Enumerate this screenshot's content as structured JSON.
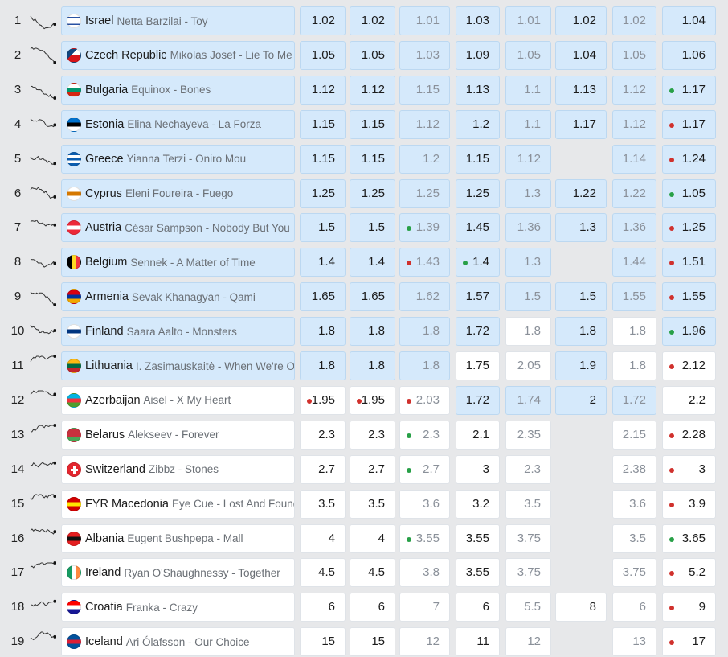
{
  "rows": [
    {
      "rank": "1",
      "country": "Israel",
      "song": "Netta Barzilai - Toy",
      "fav": true,
      "flag": {
        "bg": "#ffffff",
        "band": "#2952a3",
        "dir": "star"
      },
      "odds": [
        {
          "v": "1.02",
          "f": 1
        },
        {
          "v": "1.02",
          "f": 1
        },
        {
          "v": "1.01",
          "f": 1,
          "d": 1
        },
        {
          "v": "1.03",
          "f": 1
        },
        {
          "v": "1.01",
          "f": 1,
          "d": 1
        },
        {
          "v": "1.02",
          "f": 1
        },
        {
          "v": "1.02",
          "f": 1,
          "d": 1
        },
        {
          "v": "1.04",
          "f": 1
        }
      ]
    },
    {
      "rank": "2",
      "country": "Czech Republic",
      "song": "Mikolas Josef - Lie To Me",
      "fav": true,
      "flag": {
        "bg": "#ffffff",
        "band": "#d7141a",
        "dir": "czech"
      },
      "odds": [
        {
          "v": "1.05",
          "f": 1
        },
        {
          "v": "1.05",
          "f": 1
        },
        {
          "v": "1.03",
          "f": 1,
          "d": 1
        },
        {
          "v": "1.09",
          "f": 1
        },
        {
          "v": "1.05",
          "f": 1,
          "d": 1
        },
        {
          "v": "1.04",
          "f": 1
        },
        {
          "v": "1.05",
          "f": 1,
          "d": 1
        },
        {
          "v": "1.06",
          "f": 1
        }
      ]
    },
    {
      "rank": "3",
      "country": "Bulgaria",
      "song": "Equinox - Bones",
      "fav": true,
      "flag": {
        "colors": [
          "#ffffff",
          "#00966e",
          "#d62612"
        ]
      },
      "odds": [
        {
          "v": "1.12",
          "f": 1
        },
        {
          "v": "1.12",
          "f": 1
        },
        {
          "v": "1.15",
          "f": 1,
          "d": 1
        },
        {
          "v": "1.13",
          "f": 1
        },
        {
          "v": "1.1",
          "f": 1,
          "d": 1
        },
        {
          "v": "1.13",
          "f": 1
        },
        {
          "v": "1.12",
          "f": 1,
          "d": 1
        },
        {
          "v": "1.17",
          "f": 1,
          "dot": "green"
        }
      ]
    },
    {
      "rank": "4",
      "country": "Estonia",
      "song": "Elina Nechayeva - La Forza",
      "fav": true,
      "flag": {
        "colors": [
          "#0072ce",
          "#000000",
          "#ffffff"
        ]
      },
      "odds": [
        {
          "v": "1.15",
          "f": 1
        },
        {
          "v": "1.15",
          "f": 1
        },
        {
          "v": "1.12",
          "f": 1,
          "d": 1
        },
        {
          "v": "1.2",
          "f": 1
        },
        {
          "v": "1.1",
          "f": 1,
          "d": 1
        },
        {
          "v": "1.17",
          "f": 1
        },
        {
          "v": "1.12",
          "f": 1,
          "d": 1
        },
        {
          "v": "1.17",
          "f": 1,
          "dot": "red"
        }
      ]
    },
    {
      "rank": "5",
      "country": "Greece",
      "song": "Yianna Terzi - Oniro Mou",
      "fav": true,
      "flag": {
        "colors": [
          "#0d5eaf",
          "#ffffff",
          "#0d5eaf",
          "#ffffff",
          "#0d5eaf"
        ]
      },
      "odds": [
        {
          "v": "1.15",
          "f": 1
        },
        {
          "v": "1.15",
          "f": 1
        },
        {
          "v": "1.2",
          "f": 1,
          "d": 1
        },
        {
          "v": "1.15",
          "f": 1
        },
        {
          "v": "1.12",
          "f": 1,
          "d": 1
        },
        {
          "v": "",
          "e": 1
        },
        {
          "v": "1.14",
          "f": 1,
          "d": 1
        },
        {
          "v": "1.24",
          "f": 1,
          "dot": "red"
        }
      ]
    },
    {
      "rank": "6",
      "country": "Cyprus",
      "song": "Eleni Foureira - Fuego",
      "fav": true,
      "flag": {
        "colors": [
          "#ffffff",
          "#d57800",
          "#ffffff"
        ]
      },
      "odds": [
        {
          "v": "1.25",
          "f": 1
        },
        {
          "v": "1.25",
          "f": 1
        },
        {
          "v": "1.25",
          "f": 1,
          "d": 1
        },
        {
          "v": "1.25",
          "f": 1
        },
        {
          "v": "1.3",
          "f": 1,
          "d": 1
        },
        {
          "v": "1.22",
          "f": 1
        },
        {
          "v": "1.22",
          "f": 1,
          "d": 1
        },
        {
          "v": "1.05",
          "f": 1,
          "dot": "green"
        }
      ]
    },
    {
      "rank": "7",
      "country": "Austria",
      "song": "César Sampson - Nobody But You",
      "fav": true,
      "flag": {
        "colors": [
          "#ed2939",
          "#ffffff",
          "#ed2939"
        ]
      },
      "odds": [
        {
          "v": "1.5",
          "f": 1
        },
        {
          "v": "1.5",
          "f": 1
        },
        {
          "v": "1.39",
          "f": 1,
          "d": 1,
          "dot": "green"
        },
        {
          "v": "1.45",
          "f": 1
        },
        {
          "v": "1.36",
          "f": 1,
          "d": 1
        },
        {
          "v": "1.3",
          "f": 1
        },
        {
          "v": "1.36",
          "f": 1,
          "d": 1
        },
        {
          "v": "1.25",
          "f": 1,
          "dot": "red"
        }
      ]
    },
    {
      "rank": "8",
      "country": "Belgium",
      "song": "Sennek - A Matter of Time",
      "fav": true,
      "flag": {
        "vertical": [
          "#000000",
          "#fdda24",
          "#ef3340"
        ]
      },
      "odds": [
        {
          "v": "1.4",
          "f": 1
        },
        {
          "v": "1.4",
          "f": 1
        },
        {
          "v": "1.43",
          "f": 1,
          "d": 1,
          "dot": "red"
        },
        {
          "v": "1.4",
          "f": 1,
          "dot": "green"
        },
        {
          "v": "1.3",
          "f": 1,
          "d": 1
        },
        {
          "v": "",
          "e": 1
        },
        {
          "v": "1.44",
          "f": 1,
          "d": 1
        },
        {
          "v": "1.51",
          "f": 1,
          "dot": "red"
        }
      ]
    },
    {
      "rank": "9",
      "country": "Armenia",
      "song": "Sevak Khanagyan - Qami",
      "fav": true,
      "flag": {
        "colors": [
          "#d90012",
          "#0033a0",
          "#f2a800"
        ]
      },
      "odds": [
        {
          "v": "1.65",
          "f": 1
        },
        {
          "v": "1.65",
          "f": 1
        },
        {
          "v": "1.62",
          "f": 1,
          "d": 1
        },
        {
          "v": "1.57",
          "f": 1
        },
        {
          "v": "1.5",
          "f": 1,
          "d": 1
        },
        {
          "v": "1.5",
          "f": 1
        },
        {
          "v": "1.55",
          "f": 1,
          "d": 1
        },
        {
          "v": "1.55",
          "f": 1,
          "dot": "red"
        }
      ]
    },
    {
      "rank": "10",
      "country": "Finland",
      "song": "Saara Aalto - Monsters",
      "fav": true,
      "flag": {
        "colors": [
          "#ffffff",
          "#003580",
          "#ffffff"
        ]
      },
      "odds": [
        {
          "v": "1.8",
          "f": 1
        },
        {
          "v": "1.8",
          "f": 1
        },
        {
          "v": "1.8",
          "f": 1,
          "d": 1
        },
        {
          "v": "1.72",
          "f": 1
        },
        {
          "v": "1.8",
          "d": 1
        },
        {
          "v": "1.8",
          "f": 1
        },
        {
          "v": "1.8",
          "d": 1
        },
        {
          "v": "1.96",
          "f": 1,
          "dot": "green"
        }
      ]
    },
    {
      "rank": "11",
      "country": "Lithuania",
      "song": "I. Zasimauskaitė - When We're Old",
      "fav": true,
      "flag": {
        "colors": [
          "#fdb913",
          "#006a44",
          "#c1272d"
        ]
      },
      "odds": [
        {
          "v": "1.8",
          "f": 1
        },
        {
          "v": "1.8",
          "f": 1
        },
        {
          "v": "1.8",
          "f": 1,
          "d": 1
        },
        {
          "v": "1.75"
        },
        {
          "v": "2.05",
          "d": 1
        },
        {
          "v": "1.9",
          "f": 1
        },
        {
          "v": "1.8",
          "d": 1
        },
        {
          "v": "2.12",
          "dot": "red"
        }
      ]
    },
    {
      "rank": "12",
      "country": "Azerbaijan",
      "song": "Aisel - X My Heart",
      "fav": false,
      "flag": {
        "colors": [
          "#00b5e2",
          "#ef3340",
          "#509e2f"
        ]
      },
      "odds": [
        {
          "v": "1.95",
          "dot": "red"
        },
        {
          "v": "1.95",
          "dot": "red"
        },
        {
          "v": "2.03",
          "d": 1,
          "dot": "red"
        },
        {
          "v": "1.72",
          "f": 1
        },
        {
          "v": "1.74",
          "f": 1,
          "d": 1
        },
        {
          "v": "2",
          "f": 1
        },
        {
          "v": "1.72",
          "f": 1,
          "d": 1
        },
        {
          "v": "2.2"
        }
      ]
    },
    {
      "rank": "13",
      "country": "Belarus",
      "song": "Alekseev - Forever",
      "fav": false,
      "flag": {
        "colors": [
          "#c8313e",
          "#c8313e",
          "#4aa657"
        ]
      },
      "odds": [
        {
          "v": "2.3"
        },
        {
          "v": "2.3"
        },
        {
          "v": "2.3",
          "d": 1,
          "dot": "green"
        },
        {
          "v": "2.1"
        },
        {
          "v": "2.35",
          "d": 1
        },
        {
          "v": "",
          "e": 1
        },
        {
          "v": "2.15",
          "d": 1
        },
        {
          "v": "2.28",
          "dot": "red"
        }
      ]
    },
    {
      "rank": "14",
      "country": "Switzerland",
      "song": "Zibbz - Stones",
      "fav": false,
      "flag": {
        "colors": [
          "#e3262f",
          "#e3262f",
          "#e3262f"
        ],
        "cross": true
      },
      "odds": [
        {
          "v": "2.7"
        },
        {
          "v": "2.7"
        },
        {
          "v": "2.7",
          "d": 1,
          "dot": "green"
        },
        {
          "v": "3"
        },
        {
          "v": "2.3",
          "d": 1
        },
        {
          "v": "",
          "e": 1
        },
        {
          "v": "2.38",
          "d": 1
        },
        {
          "v": "3",
          "dot": "red"
        }
      ]
    },
    {
      "rank": "15",
      "country": "FYR Macedonia",
      "song": "Eye Cue - Lost And Found",
      "fav": false,
      "flag": {
        "colors": [
          "#d20000",
          "#ffe600",
          "#d20000"
        ]
      },
      "odds": [
        {
          "v": "3.5"
        },
        {
          "v": "3.5"
        },
        {
          "v": "3.6",
          "d": 1
        },
        {
          "v": "3.2"
        },
        {
          "v": "3.5",
          "d": 1
        },
        {
          "v": "",
          "e": 1
        },
        {
          "v": "3.6",
          "d": 1
        },
        {
          "v": "3.9",
          "dot": "red"
        }
      ]
    },
    {
      "rank": "16",
      "country": "Albania",
      "song": "Eugent Bushpepa - Mall",
      "fav": false,
      "flag": {
        "colors": [
          "#e41e20",
          "#111111",
          "#e41e20"
        ]
      },
      "odds": [
        {
          "v": "4"
        },
        {
          "v": "4"
        },
        {
          "v": "3.55",
          "d": 1,
          "dot": "green"
        },
        {
          "v": "3.55"
        },
        {
          "v": "3.75",
          "d": 1
        },
        {
          "v": "",
          "e": 1
        },
        {
          "v": "3.5",
          "d": 1
        },
        {
          "v": "3.65",
          "dot": "green"
        }
      ]
    },
    {
      "rank": "17",
      "country": "Ireland",
      "song": "Ryan O'Shaughnessy - Together",
      "fav": false,
      "flag": {
        "vertical": [
          "#169b62",
          "#ffffff",
          "#ff883e"
        ]
      },
      "odds": [
        {
          "v": "4.5"
        },
        {
          "v": "4.5"
        },
        {
          "v": "3.8",
          "d": 1
        },
        {
          "v": "3.55"
        },
        {
          "v": "3.75",
          "d": 1
        },
        {
          "v": "",
          "e": 1
        },
        {
          "v": "3.75",
          "d": 1
        },
        {
          "v": "5.2",
          "dot": "red"
        }
      ]
    },
    {
      "rank": "18",
      "country": "Croatia",
      "song": "Franka - Crazy",
      "fav": false,
      "flag": {
        "colors": [
          "#ff0000",
          "#ffffff",
          "#171796"
        ]
      },
      "odds": [
        {
          "v": "6"
        },
        {
          "v": "6"
        },
        {
          "v": "7",
          "d": 1
        },
        {
          "v": "6"
        },
        {
          "v": "5.5",
          "d": 1
        },
        {
          "v": "8"
        },
        {
          "v": "6",
          "d": 1
        },
        {
          "v": "9",
          "dot": "red"
        }
      ]
    },
    {
      "rank": "19",
      "country": "Iceland",
      "song": "Ari Ólafsson - Our Choice",
      "fav": false,
      "flag": {
        "colors": [
          "#02529c",
          "#dc1e35",
          "#02529c"
        ]
      },
      "odds": [
        {
          "v": "15"
        },
        {
          "v": "15"
        },
        {
          "v": "12",
          "d": 1
        },
        {
          "v": "11"
        },
        {
          "v": "12",
          "d": 1
        },
        {
          "v": "",
          "e": 1
        },
        {
          "v": "13",
          "d": 1
        },
        {
          "v": "17",
          "dot": "red"
        }
      ]
    }
  ],
  "colors": {
    "favorite": "#d5e9fb",
    "cell": "#ffffff",
    "dot_red": "#d0312d",
    "dot_green": "#28a047"
  }
}
